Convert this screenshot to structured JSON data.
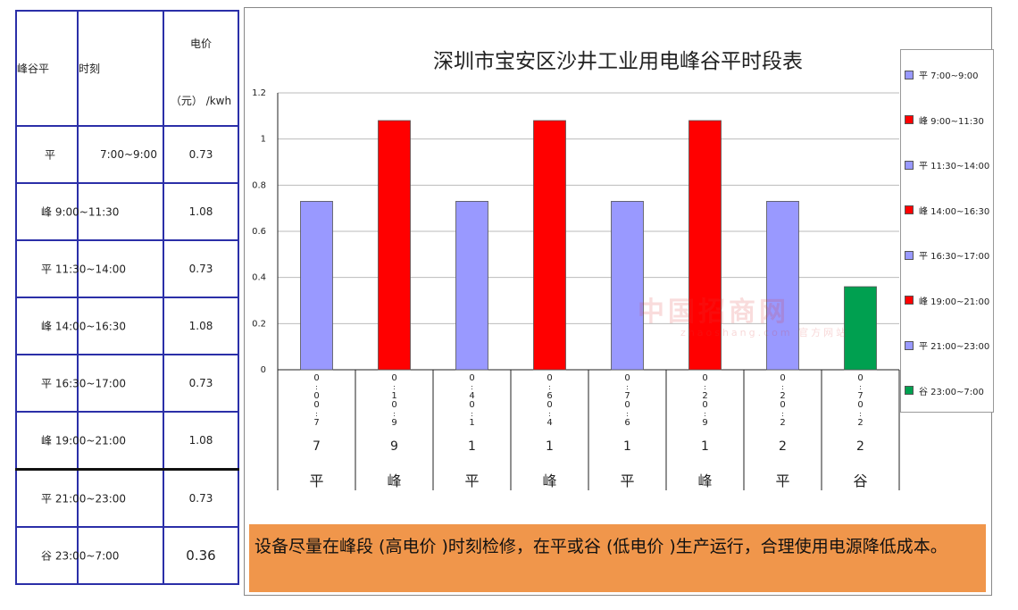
{
  "table": {
    "header": {
      "col1": "峰谷平",
      "col2": "时刻",
      "col3_top": "电价",
      "col3_bottom": "（元） /kwh"
    },
    "rows": [
      {
        "label": "平",
        "time": "7:00~9:00",
        "price": "0.73"
      },
      {
        "label": "峰 9:00~11:30",
        "price": "1.08"
      },
      {
        "label": "平 11:30~14:00",
        "price": "0.73"
      },
      {
        "label": "峰 14:00~16:30",
        "price": "1.08"
      },
      {
        "label": "平 16:30~17:00",
        "price": "0.73"
      },
      {
        "label": "峰 19:00~21:00",
        "price": "1.08"
      },
      {
        "label": "平 21:00~23:00",
        "price": "0.73"
      },
      {
        "label": "谷 23:00~7:00",
        "price": "0.36"
      }
    ]
  },
  "chart_data": {
    "type": "bar",
    "title": "深圳市宝安区沙井工业用电峰谷平时段表",
    "ylim": [
      0,
      1.2
    ],
    "yticks": [
      "0",
      "0.2",
      "0.4",
      "0.6",
      "0.8",
      "1",
      "1.2"
    ],
    "grid": true,
    "legend_position": "right",
    "categories": [
      {
        "tick_chars": [
          "0",
          ":",
          "0",
          "0",
          ":",
          "7"
        ],
        "type": "平",
        "value": 0.73,
        "color": "#9999ff"
      },
      {
        "tick_chars": [
          "0",
          ":",
          "1",
          "0",
          ":",
          "9"
        ],
        "type": "峰",
        "value": 1.08,
        "color": "#ff0000"
      },
      {
        "tick_chars": [
          "0",
          ":",
          "4",
          "0",
          ":",
          "1"
        ],
        "type": "平",
        "value": 0.73,
        "color": "#9999ff"
      },
      {
        "tick_chars": [
          "0",
          ":",
          "6",
          "0",
          ":",
          "4"
        ],
        "type": "峰",
        "value": 1.08,
        "color": "#ff0000"
      },
      {
        "tick_chars": [
          "0",
          ":",
          "7",
          "0",
          ":",
          "6"
        ],
        "type": "平",
        "value": 0.73,
        "color": "#9999ff"
      },
      {
        "tick_chars": [
          "0",
          ":",
          "2",
          "0",
          ":",
          "9"
        ],
        "type": "峰",
        "value": 1.08,
        "color": "#ff0000"
      },
      {
        "tick_chars": [
          "0",
          ":",
          "2",
          "0",
          ":",
          "2"
        ],
        "type": "平",
        "value": 0.73,
        "color": "#9999ff"
      },
      {
        "tick_chars": [
          "0",
          ":",
          "7",
          "0",
          ":",
          "2"
        ],
        "type": "谷",
        "value": 0.36,
        "color": "#00a050"
      }
    ],
    "tick_numbers": [
      "7",
      "9",
      "1",
      "1",
      "1",
      "1",
      "2",
      "2"
    ],
    "legend": [
      {
        "label": "平 7:00~9:00",
        "color": "#9999ff"
      },
      {
        "label": "峰 9:00~11:30",
        "color": "#ff0000"
      },
      {
        "label": "平 11:30~14:00",
        "color": "#9999ff"
      },
      {
        "label": "峰 14:00~16:30",
        "color": "#ff0000"
      },
      {
        "label": "平 16:30~17:00",
        "color": "#9999ff"
      },
      {
        "label": "峰 19:00~21:00",
        "color": "#ff0000"
      },
      {
        "label": "平 21:00~23:00",
        "color": "#9999ff"
      },
      {
        "label": "谷 23:00~7:00",
        "color": "#00a050"
      }
    ]
  },
  "note": "设备尽量在峰段 (高电价 )时刻检修，在平或谷 (低电价 )生产运行，合理使用电源降低成本。",
  "watermark": {
    "main": "中国招商网",
    "sub": "zhaoshang.com 官方网站"
  }
}
